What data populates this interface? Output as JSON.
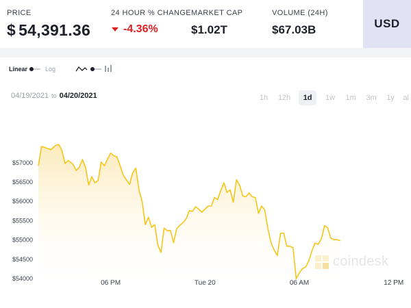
{
  "stats": {
    "price": {
      "label": "PRICE",
      "currency_symbol": "$",
      "value": "54,391.36"
    },
    "change": {
      "label": "24 HOUR % CHANGE",
      "value": "-4.36%",
      "direction": "down",
      "color": "#e0201f"
    },
    "market_cap": {
      "label": "MARKET CAP",
      "value": "$1.02T"
    },
    "volume": {
      "label": "VOLUME (24H)",
      "value": "$67.03B"
    },
    "currency_button": "USD"
  },
  "toolbar": {
    "linear_label": "Linear",
    "log_label": "Log",
    "chart_type_icon": "line-chart-icon",
    "bar_icon": "bar-chart-icon"
  },
  "range": {
    "from": "04/19/2021",
    "to_word": "to",
    "until": "04/20/2021"
  },
  "timeframes": {
    "items": [
      "1h",
      "12h",
      "1d",
      "1w",
      "1m",
      "3m",
      "1y",
      "al"
    ],
    "active": "1d"
  },
  "watermark": "coindesk",
  "chart_data": {
    "type": "area",
    "line_color": "#f5c518",
    "fill_color": "#fdf3d5",
    "ylim": [
      53950,
      58200
    ],
    "y_ticks": [
      54000,
      54500,
      55000,
      55500,
      56000,
      56500,
      57000
    ],
    "y_tick_labels": [
      "$54000",
      "$54500",
      "$55000",
      "$55500",
      "$56000",
      "$56500",
      "$57000"
    ],
    "x_ticks": [
      {
        "label": "06 PM",
        "t": 18
      },
      {
        "label": "Tue 20",
        "t": 24
      },
      {
        "label": "06 AM",
        "t": 30
      },
      {
        "label": "12 PM",
        "t": 36
      }
    ],
    "xlim": [
      13.4,
      37.1
    ],
    "xlabel": "",
    "ylabel": "",
    "grid": false,
    "series": [
      {
        "values": [
          [
            13.4,
            56920
          ],
          [
            13.6,
            57420
          ],
          [
            13.9,
            57380
          ],
          [
            14.2,
            57340
          ],
          [
            14.5,
            57450
          ],
          [
            14.7,
            57470
          ],
          [
            14.9,
            57320
          ],
          [
            15.1,
            56980
          ],
          [
            15.3,
            57060
          ],
          [
            15.6,
            56960
          ],
          [
            15.8,
            56800
          ],
          [
            16.0,
            56880
          ],
          [
            16.2,
            57080
          ],
          [
            16.4,
            56880
          ],
          [
            16.6,
            56420
          ],
          [
            16.8,
            56640
          ],
          [
            17.0,
            56480
          ],
          [
            17.2,
            56540
          ],
          [
            17.4,
            57020
          ],
          [
            17.6,
            56920
          ],
          [
            17.8,
            57100
          ],
          [
            18.0,
            57250
          ],
          [
            18.2,
            57180
          ],
          [
            18.4,
            57150
          ],
          [
            18.6,
            56920
          ],
          [
            18.8,
            56680
          ],
          [
            19.0,
            56560
          ],
          [
            19.2,
            56440
          ],
          [
            19.4,
            56740
          ],
          [
            19.6,
            56860
          ],
          [
            19.8,
            56300
          ],
          [
            20.0,
            56000
          ],
          [
            20.2,
            55400
          ],
          [
            20.4,
            55590
          ],
          [
            20.6,
            55330
          ],
          [
            20.8,
            55400
          ],
          [
            21.0,
            54870
          ],
          [
            21.2,
            54680
          ],
          [
            21.4,
            55310
          ],
          [
            21.6,
            55240
          ],
          [
            21.8,
            55250
          ],
          [
            22.0,
            54930
          ],
          [
            22.2,
            55300
          ],
          [
            22.4,
            55380
          ],
          [
            22.6,
            55450
          ],
          [
            22.8,
            55550
          ],
          [
            23.0,
            55760
          ],
          [
            23.2,
            55740
          ],
          [
            23.4,
            55860
          ],
          [
            23.6,
            55800
          ],
          [
            23.8,
            55720
          ],
          [
            24.0,
            55800
          ],
          [
            24.2,
            55880
          ],
          [
            24.4,
            55880
          ],
          [
            24.6,
            56100
          ],
          [
            24.8,
            56050
          ],
          [
            25.0,
            56280
          ],
          [
            25.2,
            56480
          ],
          [
            25.4,
            56230
          ],
          [
            25.6,
            56300
          ],
          [
            25.8,
            55980
          ],
          [
            26.0,
            56560
          ],
          [
            26.2,
            56420
          ],
          [
            26.4,
            56140
          ],
          [
            26.6,
            56120
          ],
          [
            26.8,
            56220
          ],
          [
            27.0,
            56120
          ],
          [
            27.2,
            56100
          ],
          [
            27.4,
            55690
          ],
          [
            27.6,
            55880
          ],
          [
            27.8,
            55780
          ],
          [
            28.0,
            55300
          ],
          [
            28.2,
            54930
          ],
          [
            28.4,
            54740
          ],
          [
            28.6,
            54600
          ],
          [
            28.8,
            55170
          ],
          [
            29.0,
            55180
          ],
          [
            29.2,
            54840
          ],
          [
            29.4,
            54840
          ],
          [
            29.6,
            54800
          ],
          [
            29.8,
            54000
          ],
          [
            30.0,
            54150
          ],
          [
            30.2,
            54260
          ],
          [
            30.4,
            54300
          ],
          [
            30.6,
            54460
          ],
          [
            30.8,
            54720
          ],
          [
            31.0,
            54920
          ],
          [
            31.2,
            54890
          ],
          [
            31.4,
            55040
          ],
          [
            31.6,
            55370
          ],
          [
            31.8,
            55320
          ],
          [
            32.0,
            55050
          ],
          [
            32.2,
            55010
          ],
          [
            32.4,
            55010
          ],
          [
            32.6,
            54980
          ]
        ]
      }
    ]
  }
}
